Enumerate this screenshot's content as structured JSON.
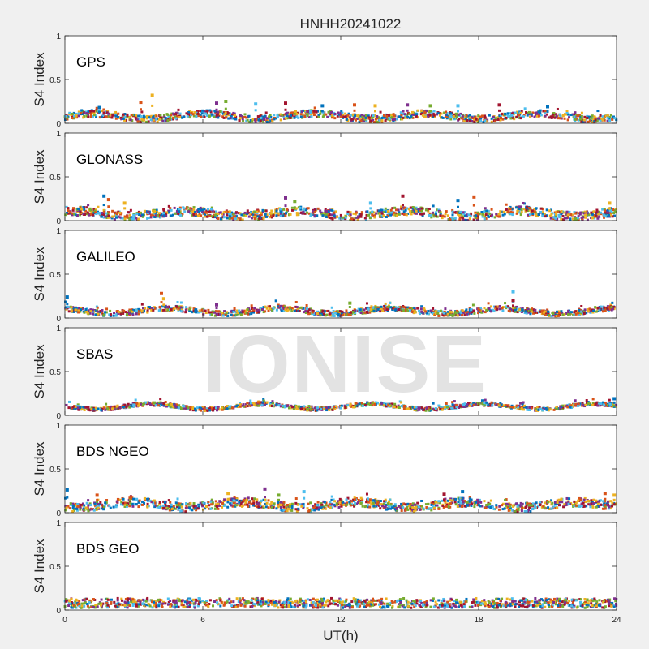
{
  "figure_title": "HNHH20241022",
  "watermark": "IONISE",
  "colors": [
    "#0072BD",
    "#D95319",
    "#EDB120",
    "#7E2F8E",
    "#77AC30",
    "#4DBEEE",
    "#A2142F"
  ],
  "chart_data": [
    {
      "type": "scatter",
      "label": "GPS",
      "ylabel": "S4 Index",
      "xlim": [
        0,
        24
      ],
      "ylim": [
        0,
        1
      ],
      "xticks": [
        "0",
        "6",
        "12",
        "18",
        "24"
      ],
      "yticks": [
        "0",
        "0.5",
        "1"
      ],
      "baseline": 0.08,
      "noise": 0.04,
      "spikes": [
        [
          1.5,
          0.18
        ],
        [
          3.3,
          0.24
        ],
        [
          3.8,
          0.32
        ],
        [
          6.6,
          0.23
        ],
        [
          7.0,
          0.25
        ],
        [
          8.3,
          0.22
        ],
        [
          9.6,
          0.23
        ],
        [
          11.2,
          0.2
        ],
        [
          12.6,
          0.21
        ],
        [
          13.5,
          0.2
        ],
        [
          14.9,
          0.21
        ],
        [
          15.9,
          0.2
        ],
        [
          17.1,
          0.2
        ],
        [
          18.9,
          0.21
        ],
        [
          21.0,
          0.19
        ]
      ]
    },
    {
      "type": "scatter",
      "label": "GLONASS",
      "ylabel": "S4 Index",
      "xlim": [
        0,
        24
      ],
      "ylim": [
        0,
        1
      ],
      "xticks": [
        "0",
        "6",
        "12",
        "18",
        "24"
      ],
      "yticks": [
        "0",
        "0.5",
        "1"
      ],
      "baseline": 0.08,
      "noise": 0.05,
      "spikes": [
        [
          1.7,
          0.28
        ],
        [
          1.9,
          0.24
        ],
        [
          2.6,
          0.2
        ],
        [
          9.6,
          0.26
        ],
        [
          10.0,
          0.22
        ],
        [
          13.3,
          0.2
        ],
        [
          14.7,
          0.28
        ],
        [
          17.1,
          0.23
        ],
        [
          17.8,
          0.27
        ],
        [
          23.7,
          0.2
        ]
      ]
    },
    {
      "type": "scatter",
      "label": "GALILEO",
      "ylabel": "S4 Index",
      "xlim": [
        0,
        24
      ],
      "ylim": [
        0,
        1
      ],
      "xticks": [
        "0",
        "6",
        "12",
        "18",
        "24"
      ],
      "yticks": [
        "0",
        "0.5",
        "1"
      ],
      "baseline": 0.08,
      "noise": 0.03,
      "spikes": [
        [
          0.1,
          0.24
        ],
        [
          4.2,
          0.28
        ],
        [
          4.3,
          0.22
        ],
        [
          6.6,
          0.15
        ],
        [
          12.4,
          0.17
        ],
        [
          19.5,
          0.3
        ],
        [
          19.5,
          0.2
        ]
      ]
    },
    {
      "type": "scatter",
      "label": "SBAS",
      "ylabel": "S4 Index",
      "xlim": [
        0,
        24
      ],
      "ylim": [
        0,
        1
      ],
      "xticks": [
        "0",
        "6",
        "12",
        "18",
        "24"
      ],
      "yticks": [
        "0",
        "0.5",
        "1"
      ],
      "baseline": 0.1,
      "noise": 0.02,
      "spikes": [
        [
          23.9,
          0.19
        ]
      ]
    },
    {
      "type": "scatter",
      "label": "BDS NGEO",
      "ylabel": "S4 Index",
      "xlim": [
        0,
        24
      ],
      "ylim": [
        0,
        1
      ],
      "xticks": [
        "0",
        "6",
        "12",
        "18",
        "24"
      ],
      "yticks": [
        "0",
        "0.5",
        "1"
      ],
      "baseline": 0.09,
      "noise": 0.05,
      "spikes": [
        [
          0.1,
          0.26
        ],
        [
          1.4,
          0.2
        ],
        [
          7.1,
          0.22
        ],
        [
          8.7,
          0.27
        ],
        [
          9.3,
          0.2
        ],
        [
          10.4,
          0.24
        ],
        [
          16.5,
          0.21
        ],
        [
          17.3,
          0.24
        ],
        [
          23.5,
          0.22
        ],
        [
          23.9,
          0.2
        ]
      ]
    },
    {
      "type": "scatter",
      "label": "BDS GEO",
      "ylabel": "S4 Index",
      "xlim": [
        0,
        24
      ],
      "ylim": [
        0,
        1
      ],
      "xticks": [
        "0",
        "6",
        "12",
        "18",
        "24"
      ],
      "yticks": [
        "0",
        "0.5",
        "1"
      ],
      "baseline": 0.08,
      "noise": 0.015,
      "bands": [
        0.04,
        0.06,
        0.08,
        0.1,
        0.12
      ],
      "spikes": []
    }
  ],
  "xlabel": "UT(h)"
}
